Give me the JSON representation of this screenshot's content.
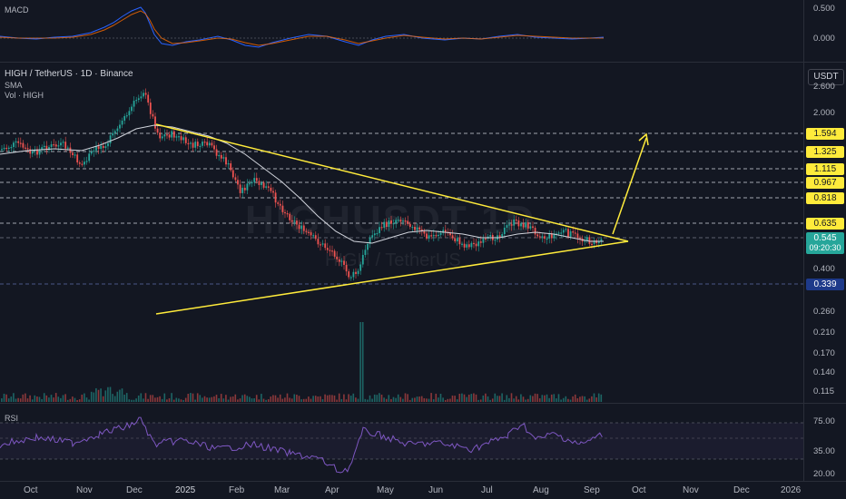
{
  "macd": {
    "title": "MACD",
    "axis_labels": [
      "0.500",
      "0.000"
    ]
  },
  "price": {
    "symbol_line": "HIGH / TetherUS · 1D · Binance",
    "indicator1": "SMA",
    "indicator2": "Vol · HIGH",
    "unit": "USDT",
    "watermark": "HIGHUSDT 1D",
    "watermark_sub": "HIGH / TetherUS",
    "axis_labels": [
      "2.600",
      "2.000",
      "0.400",
      "0.260",
      "0.210",
      "0.170",
      "0.140",
      "0.115"
    ],
    "level_tags": [
      "1.594",
      "1.325",
      "1.115",
      "0.967",
      "0.818",
      "0.635"
    ],
    "current_price": "0.545",
    "countdown": "09:20:30",
    "support_tag": "0.339"
  },
  "rsi": {
    "title": "RSI",
    "axis_labels": [
      "75.00",
      "35.00",
      "20.00"
    ]
  },
  "time_axis": [
    "Oct",
    "Nov",
    "Dec",
    "2025",
    "Feb",
    "Mar",
    "Apr",
    "May",
    "Jun",
    "Jul",
    "Aug",
    "Sep",
    "Oct",
    "Nov",
    "Dec",
    "2026"
  ],
  "colors": {
    "background": "#131722",
    "trendline": "#ffeb3b",
    "candle_up": "#26a69a",
    "candle_down": "#ef5350",
    "sma": "#d1d4dc",
    "macd_line": "#2962ff",
    "signal_line": "#ff6d00",
    "rsi_line": "#7e57c2"
  }
}
